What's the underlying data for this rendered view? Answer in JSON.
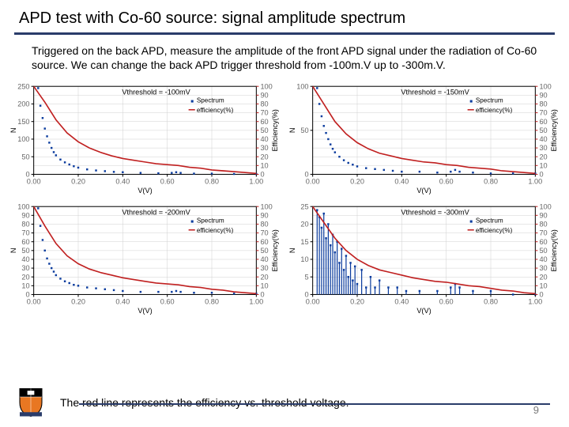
{
  "title": "APD test with Co-60 source: signal amplitude spectrum",
  "description": "Triggered on the back APD, measure the amplitude of the front APD signal under the radiation of Co-60 source. We can change the back APD trigger threshold from -100m.V up to -300m.V.",
  "footnote": "The red line represents the efficiency vs. threshold voltage.",
  "pagenum": "9",
  "colors": {
    "rule": "#2a3c6a",
    "spectrum_point": "#0b3c9e",
    "efficiency_line": "#c02020",
    "grid": "#d0d0d0",
    "axis": "#000000",
    "right_axis": "#c02020",
    "bg": "#ffffff"
  },
  "axis_labels": {
    "x": "V(V)",
    "y_left": "N",
    "y_right": "Efficiency(%)"
  },
  "legend": {
    "spectrum": "Spectrum",
    "efficiency": "efficiency(%)"
  },
  "panels": [
    {
      "type": "scatter+line",
      "title": "Vthreshold = -100mV",
      "xlim": [
        0.0,
        1.0
      ],
      "xticks": [
        0.0,
        0.2,
        0.4,
        0.6,
        0.8,
        1.0
      ],
      "ylim_left": [
        0,
        250
      ],
      "yticks_left": [
        0,
        50,
        100,
        150,
        200,
        250
      ],
      "ylim_right": [
        0,
        100
      ],
      "yticks_right": [
        0,
        10,
        20,
        30,
        40,
        50,
        60,
        70,
        80,
        90,
        100
      ],
      "spectrum": [
        [
          0.02,
          245
        ],
        [
          0.03,
          195
        ],
        [
          0.04,
          160
        ],
        [
          0.05,
          130
        ],
        [
          0.06,
          108
        ],
        [
          0.07,
          90
        ],
        [
          0.08,
          75
        ],
        [
          0.09,
          63
        ],
        [
          0.1,
          54
        ],
        [
          0.12,
          42
        ],
        [
          0.14,
          34
        ],
        [
          0.16,
          28
        ],
        [
          0.18,
          23
        ],
        [
          0.2,
          19
        ],
        [
          0.24,
          14
        ],
        [
          0.28,
          11
        ],
        [
          0.32,
          9
        ],
        [
          0.36,
          7
        ],
        [
          0.4,
          6
        ],
        [
          0.48,
          4
        ],
        [
          0.56,
          3
        ],
        [
          0.62,
          4
        ],
        [
          0.64,
          6
        ],
        [
          0.66,
          4
        ],
        [
          0.72,
          2
        ],
        [
          0.8,
          2
        ],
        [
          0.9,
          1
        ],
        [
          1.0,
          1
        ]
      ],
      "spectrum_ymax": 250,
      "efficiency": [
        [
          0.0,
          100
        ],
        [
          0.05,
          82
        ],
        [
          0.1,
          62
        ],
        [
          0.15,
          47
        ],
        [
          0.2,
          37
        ],
        [
          0.25,
          30
        ],
        [
          0.3,
          25
        ],
        [
          0.35,
          21
        ],
        [
          0.4,
          18
        ],
        [
          0.45,
          16
        ],
        [
          0.5,
          14
        ],
        [
          0.55,
          12
        ],
        [
          0.6,
          11
        ],
        [
          0.65,
          10
        ],
        [
          0.7,
          8
        ],
        [
          0.75,
          7
        ],
        [
          0.8,
          5
        ],
        [
          0.85,
          4
        ],
        [
          0.9,
          3
        ],
        [
          0.95,
          2
        ],
        [
          1.0,
          1
        ]
      ]
    },
    {
      "type": "scatter+line",
      "title": "Vthreshold = -150mV",
      "xlim": [
        0.0,
        1.0
      ],
      "xticks": [
        0.0,
        0.2,
        0.4,
        0.6,
        0.8,
        1.0
      ],
      "ylim_left": [
        0,
        100
      ],
      "yticks_left": [
        0,
        50,
        100
      ],
      "ylim_right": [
        0,
        100
      ],
      "yticks_right": [
        0,
        10,
        20,
        30,
        40,
        50,
        60,
        70,
        80,
        90,
        100
      ],
      "spectrum": [
        [
          0.02,
          98
        ],
        [
          0.03,
          80
        ],
        [
          0.04,
          66
        ],
        [
          0.05,
          55
        ],
        [
          0.06,
          47
        ],
        [
          0.07,
          40
        ],
        [
          0.08,
          34
        ],
        [
          0.09,
          29
        ],
        [
          0.1,
          25
        ],
        [
          0.12,
          20
        ],
        [
          0.14,
          16
        ],
        [
          0.16,
          13
        ],
        [
          0.18,
          11
        ],
        [
          0.2,
          9
        ],
        [
          0.24,
          7
        ],
        [
          0.28,
          6
        ],
        [
          0.32,
          5
        ],
        [
          0.36,
          4
        ],
        [
          0.4,
          3
        ],
        [
          0.48,
          3
        ],
        [
          0.56,
          2
        ],
        [
          0.62,
          3
        ],
        [
          0.64,
          5
        ],
        [
          0.66,
          3
        ],
        [
          0.72,
          2
        ],
        [
          0.8,
          1
        ],
        [
          0.9,
          1
        ],
        [
          1.0,
          1
        ]
      ],
      "spectrum_ymax": 100,
      "efficiency": [
        [
          0.0,
          100
        ],
        [
          0.05,
          80
        ],
        [
          0.1,
          60
        ],
        [
          0.15,
          46
        ],
        [
          0.2,
          36
        ],
        [
          0.25,
          29
        ],
        [
          0.3,
          24
        ],
        [
          0.35,
          21
        ],
        [
          0.4,
          18
        ],
        [
          0.45,
          16
        ],
        [
          0.5,
          14
        ],
        [
          0.55,
          13
        ],
        [
          0.6,
          11
        ],
        [
          0.65,
          10
        ],
        [
          0.7,
          8
        ],
        [
          0.75,
          7
        ],
        [
          0.8,
          6
        ],
        [
          0.85,
          4
        ],
        [
          0.9,
          3
        ],
        [
          0.95,
          2
        ],
        [
          1.0,
          1
        ]
      ]
    },
    {
      "type": "scatter+line",
      "title": "Vthreshold = -200mV",
      "xlim": [
        0.0,
        1.0
      ],
      "xticks": [
        0.0,
        0.2,
        0.4,
        0.6,
        0.8,
        1.0
      ],
      "ylim_left": [
        0,
        100
      ],
      "yticks_left": [
        0,
        10,
        20,
        30,
        40,
        50,
        60,
        70,
        80,
        90,
        100
      ],
      "ylim_right": [
        0,
        100
      ],
      "yticks_right": [
        0,
        10,
        20,
        30,
        40,
        50,
        60,
        70,
        80,
        90,
        100
      ],
      "spectrum": [
        [
          0.02,
          98
        ],
        [
          0.03,
          78
        ],
        [
          0.04,
          62
        ],
        [
          0.05,
          50
        ],
        [
          0.06,
          41
        ],
        [
          0.07,
          35
        ],
        [
          0.08,
          30
        ],
        [
          0.09,
          26
        ],
        [
          0.1,
          22
        ],
        [
          0.12,
          18
        ],
        [
          0.14,
          15
        ],
        [
          0.16,
          13
        ],
        [
          0.18,
          11
        ],
        [
          0.2,
          10
        ],
        [
          0.24,
          8
        ],
        [
          0.28,
          7
        ],
        [
          0.32,
          6
        ],
        [
          0.36,
          5
        ],
        [
          0.4,
          4
        ],
        [
          0.48,
          3
        ],
        [
          0.56,
          3
        ],
        [
          0.62,
          3
        ],
        [
          0.64,
          4
        ],
        [
          0.66,
          3
        ],
        [
          0.72,
          2
        ],
        [
          0.8,
          2
        ],
        [
          0.9,
          1
        ],
        [
          1.0,
          1
        ]
      ],
      "spectrum_ymax": 100,
      "efficiency": [
        [
          0.0,
          100
        ],
        [
          0.05,
          78
        ],
        [
          0.1,
          58
        ],
        [
          0.15,
          44
        ],
        [
          0.2,
          35
        ],
        [
          0.25,
          29
        ],
        [
          0.3,
          25
        ],
        [
          0.35,
          22
        ],
        [
          0.4,
          19
        ],
        [
          0.45,
          17
        ],
        [
          0.5,
          15
        ],
        [
          0.55,
          13
        ],
        [
          0.6,
          12
        ],
        [
          0.65,
          11
        ],
        [
          0.7,
          9
        ],
        [
          0.75,
          8
        ],
        [
          0.8,
          6
        ],
        [
          0.85,
          5
        ],
        [
          0.9,
          3
        ],
        [
          0.95,
          2
        ],
        [
          1.0,
          1
        ]
      ]
    },
    {
      "type": "scatter+line",
      "title": "Vthreshold = -300mV",
      "xlim": [
        0.0,
        1.0
      ],
      "xticks": [
        0.0,
        0.2,
        0.4,
        0.6,
        0.8,
        1.0
      ],
      "ylim_left": [
        0,
        25
      ],
      "yticks_left": [
        0,
        5,
        10,
        15,
        20,
        25
      ],
      "ylim_right": [
        0,
        100
      ],
      "yticks_right": [
        0,
        10,
        20,
        30,
        40,
        50,
        60,
        70,
        80,
        90,
        100
      ],
      "spectrum": [
        [
          0.02,
          24
        ],
        [
          0.03,
          22
        ],
        [
          0.04,
          19
        ],
        [
          0.05,
          23
        ],
        [
          0.06,
          16
        ],
        [
          0.07,
          20
        ],
        [
          0.08,
          14
        ],
        [
          0.09,
          17
        ],
        [
          0.1,
          12
        ],
        [
          0.11,
          15
        ],
        [
          0.12,
          9
        ],
        [
          0.13,
          13
        ],
        [
          0.14,
          7
        ],
        [
          0.15,
          11
        ],
        [
          0.16,
          5
        ],
        [
          0.17,
          9
        ],
        [
          0.18,
          4
        ],
        [
          0.19,
          8
        ],
        [
          0.2,
          3
        ],
        [
          0.22,
          7
        ],
        [
          0.24,
          2
        ],
        [
          0.26,
          5
        ],
        [
          0.28,
          2
        ],
        [
          0.3,
          4
        ],
        [
          0.34,
          2
        ],
        [
          0.38,
          2
        ],
        [
          0.42,
          1
        ],
        [
          0.48,
          1
        ],
        [
          0.56,
          1
        ],
        [
          0.62,
          2
        ],
        [
          0.64,
          3
        ],
        [
          0.66,
          2
        ],
        [
          0.72,
          1
        ],
        [
          0.8,
          1
        ],
        [
          0.9,
          0
        ],
        [
          1.0,
          0
        ]
      ],
      "spectrum_ymax": 25,
      "efficiency": [
        [
          0.0,
          100
        ],
        [
          0.05,
          82
        ],
        [
          0.1,
          64
        ],
        [
          0.15,
          50
        ],
        [
          0.2,
          40
        ],
        [
          0.25,
          33
        ],
        [
          0.3,
          28
        ],
        [
          0.35,
          25
        ],
        [
          0.4,
          22
        ],
        [
          0.45,
          19
        ],
        [
          0.5,
          17
        ],
        [
          0.55,
          15
        ],
        [
          0.6,
          14
        ],
        [
          0.65,
          12
        ],
        [
          0.7,
          10
        ],
        [
          0.75,
          9
        ],
        [
          0.8,
          7
        ],
        [
          0.85,
          5
        ],
        [
          0.9,
          4
        ],
        [
          0.95,
          2
        ],
        [
          1.0,
          1
        ]
      ]
    }
  ]
}
